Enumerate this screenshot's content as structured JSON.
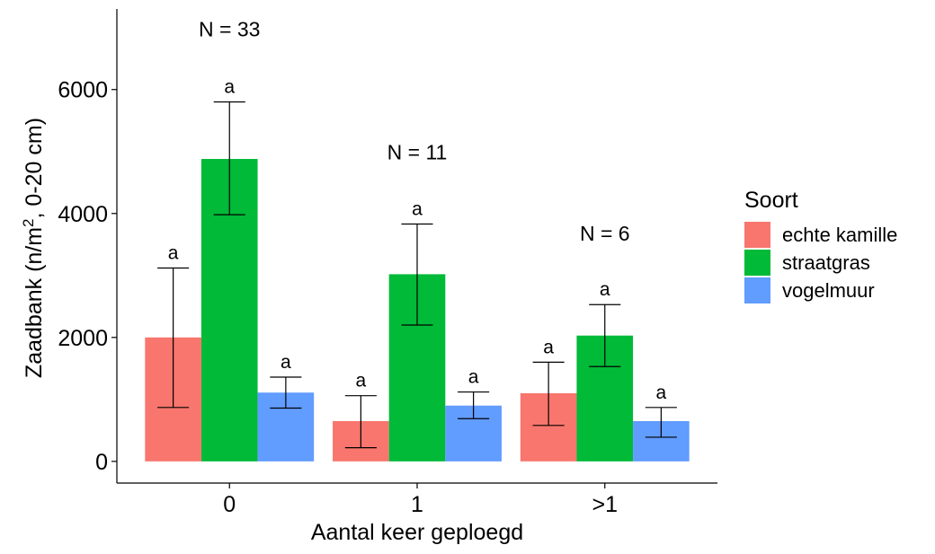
{
  "chart_data": {
    "type": "bar",
    "xlabel": "Aantal keer geploegd",
    "ylabel": "Zaadbank (n/m², 0-20 cm)",
    "ylim": [
      -350,
      7300
    ],
    "yticks": [
      0,
      2000,
      4000,
      6000
    ],
    "categories": [
      "0",
      "1",
      ">1"
    ],
    "group_annotations": [
      "N = 33",
      "N = 11",
      "N = 6"
    ],
    "group_annotation_y": [
      6990,
      5000,
      3690
    ],
    "legend_title": "Soort",
    "legend_position": "right",
    "grid": false,
    "series": [
      {
        "name": "echte kamille",
        "color": "#F8766D",
        "values": [
          2000,
          650,
          1100
        ],
        "err_low": [
          870,
          220,
          580
        ],
        "err_high": [
          3120,
          1060,
          1600
        ],
        "letters": [
          "a",
          "a",
          "a"
        ]
      },
      {
        "name": "straatgras",
        "color": "#00BA38",
        "values": [
          4880,
          3020,
          2030
        ],
        "err_low": [
          3980,
          2200,
          1530
        ],
        "err_high": [
          5800,
          3830,
          2530
        ],
        "letters": [
          "a",
          "a",
          "a"
        ]
      },
      {
        "name": "vogelmuur",
        "color": "#619CFF",
        "values": [
          1110,
          900,
          650
        ],
        "err_low": [
          860,
          690,
          390
        ],
        "err_high": [
          1360,
          1120,
          870
        ],
        "letters": [
          "a",
          "a",
          "a"
        ]
      }
    ]
  }
}
